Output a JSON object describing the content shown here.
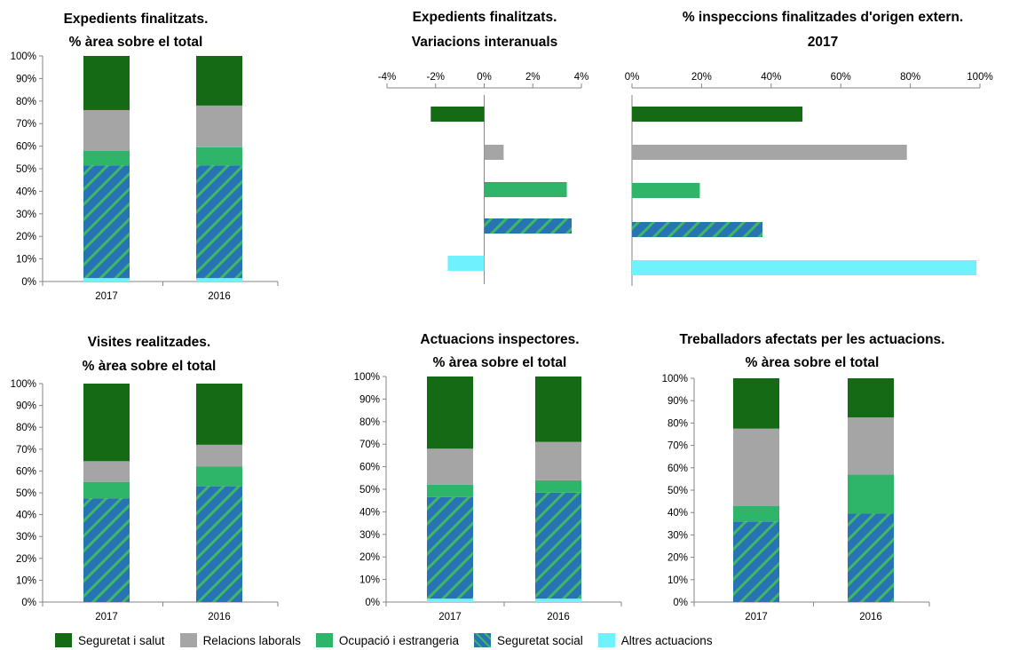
{
  "colors": {
    "seguretat_i_salut": "#156a16",
    "relacions_laborals": "#a5a5a5",
    "ocupacio_i_estrangeria": "#2fb56a",
    "seguretat_social_a": "#2873b4",
    "seguretat_social_b": "#3fb865",
    "altres_actuacions": "#6ff2fd"
  },
  "legend": [
    {
      "key": "seguretat_i_salut",
      "label": "Seguretat i salut"
    },
    {
      "key": "relacions_laborals",
      "label": "Relacions laborals"
    },
    {
      "key": "ocupacio_i_estrangeria",
      "label": "Ocupació i estrangeria"
    },
    {
      "key": "seguretat_social",
      "label": "Seguretat  social"
    },
    {
      "key": "altres_actuacions",
      "label": "Altres actuacions"
    }
  ],
  "chart_data": [
    {
      "type": "bar",
      "stacked": true,
      "title": [
        "Expedients finalitzats.",
        "% àrea sobre el total"
      ],
      "categories": [
        "2017",
        "2016"
      ],
      "ylim": [
        0,
        100
      ],
      "yticks": [
        "0%",
        "10%",
        "20%",
        "30%",
        "40%",
        "50%",
        "60%",
        "70%",
        "80%",
        "90%",
        "100%"
      ],
      "series": [
        {
          "name": "Altres actuacions",
          "key": "altres_actuacions",
          "values": [
            1.5,
            1.5
          ]
        },
        {
          "name": "Seguretat  social",
          "key": "seguretat_social",
          "values": [
            50,
            50
          ]
        },
        {
          "name": "Ocupació i estrangeria",
          "key": "ocupacio_i_estrangeria",
          "values": [
            6.5,
            8
          ]
        },
        {
          "name": "Relacions laborals",
          "key": "relacions_laborals",
          "values": [
            18,
            18.5
          ]
        },
        {
          "name": "Seguretat i salut",
          "key": "seguretat_i_salut",
          "values": [
            24,
            22
          ]
        }
      ]
    },
    {
      "type": "bar",
      "orientation": "horizontal",
      "title": [
        "Expedients finalitzats.",
        "Variacions interanuals"
      ],
      "xlim": [
        -4,
        4
      ],
      "xticks": [
        "-4%",
        "-2%",
        "0%",
        "2%",
        "4%"
      ],
      "categories": [
        "Seguretat i salut",
        "Relacions laborals",
        "Ocupació i estrangeria",
        "Seguretat  social",
        "Altres actuacions"
      ],
      "keys": [
        "seguretat_i_salut",
        "relacions_laborals",
        "ocupacio_i_estrangeria",
        "seguretat_social",
        "altres_actuacions"
      ],
      "values": [
        -2.2,
        0.8,
        3.4,
        3.6,
        -1.5
      ]
    },
    {
      "type": "bar",
      "orientation": "horizontal",
      "title": [
        "% inspeccions finalitzades d'origen extern.",
        "2017"
      ],
      "xlim": [
        0,
        100
      ],
      "xticks": [
        "0%",
        "20%",
        "40%",
        "60%",
        "80%",
        "100%"
      ],
      "categories": [
        "Seguretat i salut",
        "Relacions laborals",
        "Ocupació i estrangeria",
        "Seguretat  social",
        "Altres actuacions"
      ],
      "keys": [
        "seguretat_i_salut",
        "relacions_laborals",
        "ocupacio_i_estrangeria",
        "seguretat_social",
        "altres_actuacions"
      ],
      "values": [
        49,
        79,
        19.5,
        37.5,
        99
      ]
    },
    {
      "type": "bar",
      "stacked": true,
      "title": [
        "Visites realitzades.",
        "% àrea sobre el total"
      ],
      "categories": [
        "2017",
        "2016"
      ],
      "ylim": [
        0,
        100
      ],
      "yticks": [
        "0%",
        "10%",
        "20%",
        "30%",
        "40%",
        "50%",
        "60%",
        "70%",
        "80%",
        "90%",
        "100%"
      ],
      "series": [
        {
          "name": "Altres actuacions",
          "key": "altres_actuacions",
          "values": [
            0,
            0
          ]
        },
        {
          "name": "Seguretat  social",
          "key": "seguretat_social",
          "values": [
            47.5,
            53
          ]
        },
        {
          "name": "Ocupació i estrangeria",
          "key": "ocupacio_i_estrangeria",
          "values": [
            7.5,
            9
          ]
        },
        {
          "name": "Relacions laborals",
          "key": "relacions_laborals",
          "values": [
            9.5,
            10
          ]
        },
        {
          "name": "Seguretat i salut",
          "key": "seguretat_i_salut",
          "values": [
            35.5,
            28
          ]
        }
      ]
    },
    {
      "type": "bar",
      "stacked": true,
      "title": [
        "Actuacions inspectores.",
        "% àrea sobre el total"
      ],
      "categories": [
        "2017",
        "2016"
      ],
      "ylim": [
        0,
        100
      ],
      "yticks": [
        "0%",
        "10%",
        "20%",
        "30%",
        "40%",
        "50%",
        "60%",
        "70%",
        "80%",
        "90%",
        "100%"
      ],
      "series": [
        {
          "name": "Altres actuacions",
          "key": "altres_actuacions",
          "values": [
            1.5,
            1.5
          ]
        },
        {
          "name": "Seguretat  social",
          "key": "seguretat_social",
          "values": [
            45,
            47
          ]
        },
        {
          "name": "Ocupació i estrangeria",
          "key": "ocupacio_i_estrangeria",
          "values": [
            5.5,
            5.5
          ]
        },
        {
          "name": "Relacions laborals",
          "key": "relacions_laborals",
          "values": [
            16,
            17
          ]
        },
        {
          "name": "Seguretat i salut",
          "key": "seguretat_i_salut",
          "values": [
            32,
            29
          ]
        }
      ]
    },
    {
      "type": "bar",
      "stacked": true,
      "title": [
        "Treballadors afectats per les actuacions.",
        "% àrea sobre el total"
      ],
      "categories": [
        "2017",
        "2016"
      ],
      "ylim": [
        0,
        100
      ],
      "yticks": [
        "0%",
        "10%",
        "20%",
        "30%",
        "40%",
        "50%",
        "60%",
        "70%",
        "80%",
        "90%",
        "100%"
      ],
      "series": [
        {
          "name": "Altres actuacions",
          "key": "altres_actuacions",
          "values": [
            0,
            0
          ]
        },
        {
          "name": "Seguretat  social",
          "key": "seguretat_social",
          "values": [
            36,
            39.5
          ]
        },
        {
          "name": "Ocupació i estrangeria",
          "key": "ocupacio_i_estrangeria",
          "values": [
            7,
            17.5
          ]
        },
        {
          "name": "Relacions laborals",
          "key": "relacions_laborals",
          "values": [
            34.5,
            25.5
          ]
        },
        {
          "name": "Seguretat i salut",
          "key": "seguretat_i_salut",
          "values": [
            22.5,
            17.5
          ]
        }
      ]
    }
  ]
}
